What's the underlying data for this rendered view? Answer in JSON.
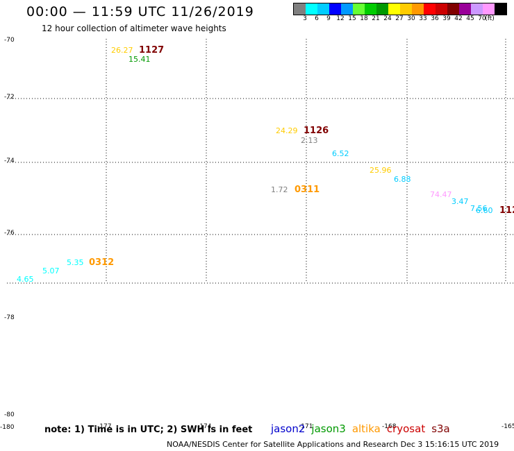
{
  "header": {
    "title": "00:00 — 11:59 UTC 11/26/2019",
    "subtitle": "12 hour collection of altimeter wave heights"
  },
  "legend": {
    "colors": [
      "#808080",
      "#00ffff",
      "#00ccff",
      "#0000ff",
      "#0099ff",
      "#66ff33",
      "#00cc00",
      "#009900",
      "#ffff00",
      "#ffcc00",
      "#ff9900",
      "#ff0000",
      "#cc0000",
      "#800000",
      "#990099",
      "#cc99ff",
      "#ff99ff",
      "#000000"
    ],
    "labels": [
      "3",
      "6",
      "9",
      "12",
      "15",
      "18",
      "21",
      "24",
      "27",
      "30",
      "33",
      "36",
      "39",
      "42",
      "45",
      "70",
      "(ft)"
    ]
  },
  "axes": {
    "lat_labels": [
      "-70",
      "-72",
      "-74",
      "-76",
      "-78",
      "-80"
    ],
    "lon_labels": [
      "-180",
      "-177",
      "-174",
      "-171",
      "-168",
      "-165"
    ]
  },
  "observations": [
    {
      "text": "26.27",
      "color": "#ffcc00"
    },
    {
      "text": "1127",
      "color": "#800000",
      "bold": true
    },
    {
      "text": "15.41",
      "color": "#009900"
    },
    {
      "text": "24.29",
      "color": "#ffcc00"
    },
    {
      "text": "1126",
      "color": "#800000",
      "bold": true
    },
    {
      "text": "2.13",
      "color": "#808080"
    },
    {
      "text": "6.52",
      "color": "#00ccff"
    },
    {
      "text": "25.96",
      "color": "#ffcc00"
    },
    {
      "text": "6.88",
      "color": "#00ccff"
    },
    {
      "text": "1.72",
      "color": "#808080"
    },
    {
      "text": "0311",
      "color": "#ff9900",
      "bold": true
    },
    {
      "text": "74.47",
      "color": "#ff99ff"
    },
    {
      "text": "3.47",
      "color": "#00ccff"
    },
    {
      "text": "7.56",
      "color": "#00ccff"
    },
    {
      "text": "6.60",
      "color": "#00ccff"
    },
    {
      "text": "112",
      "color": "#800000",
      "bold": true
    },
    {
      "text": "0312",
      "color": "#ff9900",
      "bold": true
    },
    {
      "text": "5.35",
      "color": "#00ffff"
    },
    {
      "text": "5.07",
      "color": "#00ffff"
    },
    {
      "text": "4.65",
      "color": "#00ffff"
    }
  ],
  "footer": {
    "note": "note: 1) Time is in UTC; 2) SWH is in feet",
    "satellites": [
      {
        "name": "jason2",
        "color": "#0000cc"
      },
      {
        "name": "jason3",
        "color": "#009900"
      },
      {
        "name": "altika",
        "color": "#ff9900"
      },
      {
        "name": "cryosat",
        "color": "#cc0000"
      },
      {
        "name": "s3a",
        "color": "#800000"
      }
    ],
    "credit": "NOAA/NESDIS Center for Satellite Applications and Research    Dec  3 15:16:15 UTC 2019"
  }
}
